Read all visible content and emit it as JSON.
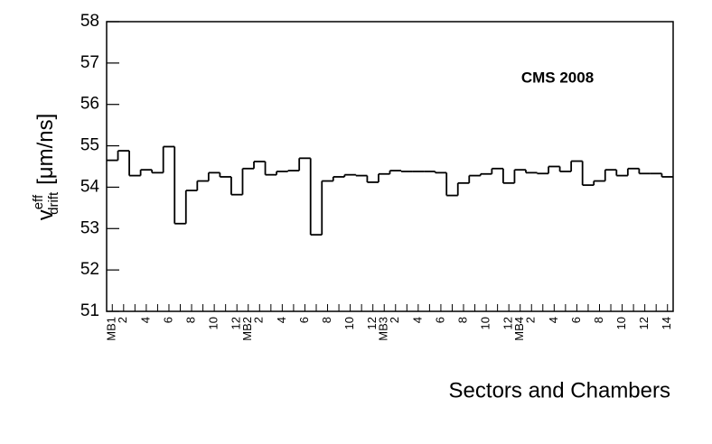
{
  "chart_data": {
    "type": "step",
    "annotation": "CMS 2008",
    "x_label": "Sectors and Chambers",
    "y_label": {
      "symbol": "v",
      "superscript": "eff",
      "subscript": "drift",
      "unit": "[μm/ns]"
    },
    "categories": [
      "MB1",
      "2",
      null,
      "4",
      null,
      "6",
      null,
      "8",
      null,
      "10",
      null,
      "12",
      "MB2",
      "2",
      null,
      "4",
      null,
      "6",
      null,
      "8",
      null,
      "10",
      null,
      "12",
      "MB3",
      "2",
      null,
      "4",
      null,
      "6",
      null,
      "8",
      null,
      "10",
      null,
      "12",
      "MB4",
      "2",
      null,
      "4",
      null,
      "6",
      null,
      "8",
      null,
      "10",
      null,
      "12",
      null,
      "14"
    ],
    "values": [
      54.65,
      54.88,
      54.28,
      54.42,
      54.35,
      54.98,
      53.12,
      53.92,
      54.15,
      54.35,
      54.25,
      53.82,
      54.45,
      54.62,
      54.3,
      54.38,
      54.4,
      54.7,
      52.85,
      54.15,
      54.25,
      54.3,
      54.28,
      54.12,
      54.32,
      54.4,
      54.38,
      54.38,
      54.38,
      54.35,
      53.8,
      54.1,
      54.28,
      54.32,
      54.45,
      54.1,
      54.42,
      54.35,
      54.33,
      54.5,
      54.38,
      54.63,
      54.05,
      54.15,
      54.42,
      54.28,
      54.45,
      54.33,
      54.33,
      54.25
    ],
    "color": "#000000",
    "ylim": [
      51,
      58
    ],
    "yticks": [
      51,
      52,
      53,
      54,
      55,
      56,
      57,
      58
    ]
  }
}
